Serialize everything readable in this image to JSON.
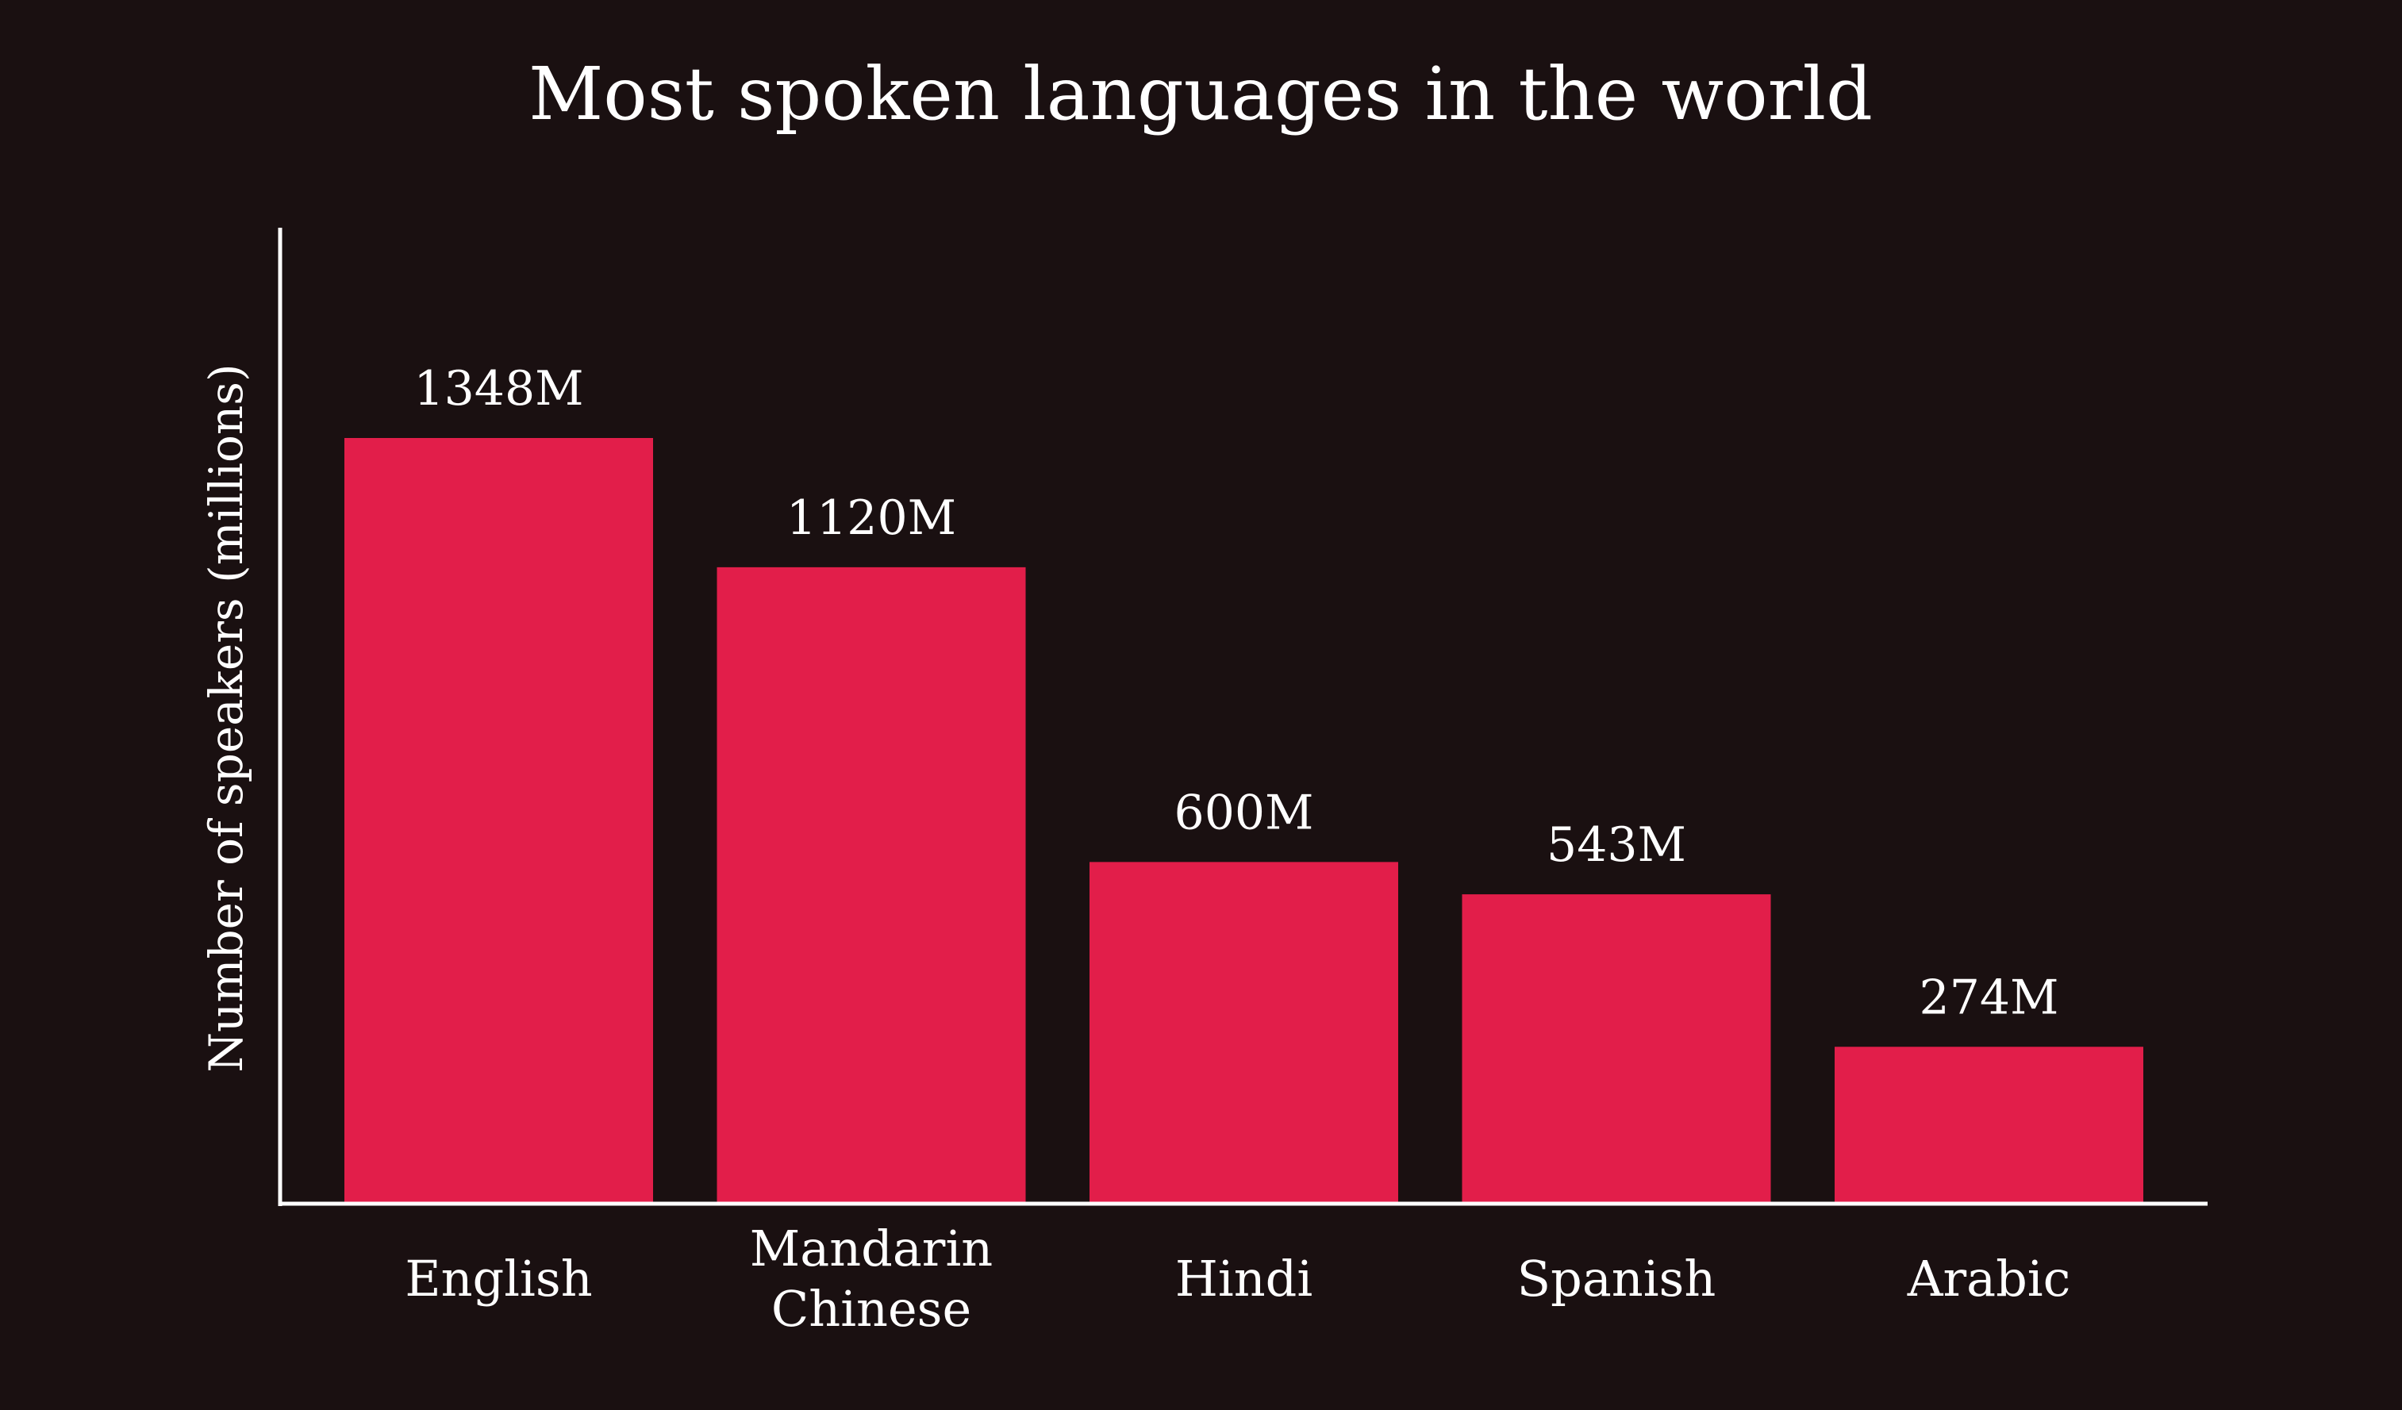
{
  "chart_data": {
    "type": "bar",
    "title": "Most spoken languages in the world",
    "xlabel": "",
    "ylabel": "Number of speakers (millions)",
    "categories": [
      [
        "English"
      ],
      [
        "Mandarin",
        "Chinese"
      ],
      [
        "Hindi"
      ],
      [
        "Spanish"
      ],
      [
        "Arabic"
      ]
    ],
    "values": [
      1348,
      1120,
      600,
      543,
      274
    ],
    "data_labels": [
      "1348M",
      "1120M",
      "600M",
      "543M",
      "274M"
    ],
    "ylim": [
      0,
      1700
    ],
    "grid": false,
    "legend": "none",
    "colors": {
      "background": "#1a1011",
      "bar": "#e21e4a",
      "axis": "#ffffff",
      "text": "#ffffff"
    }
  }
}
